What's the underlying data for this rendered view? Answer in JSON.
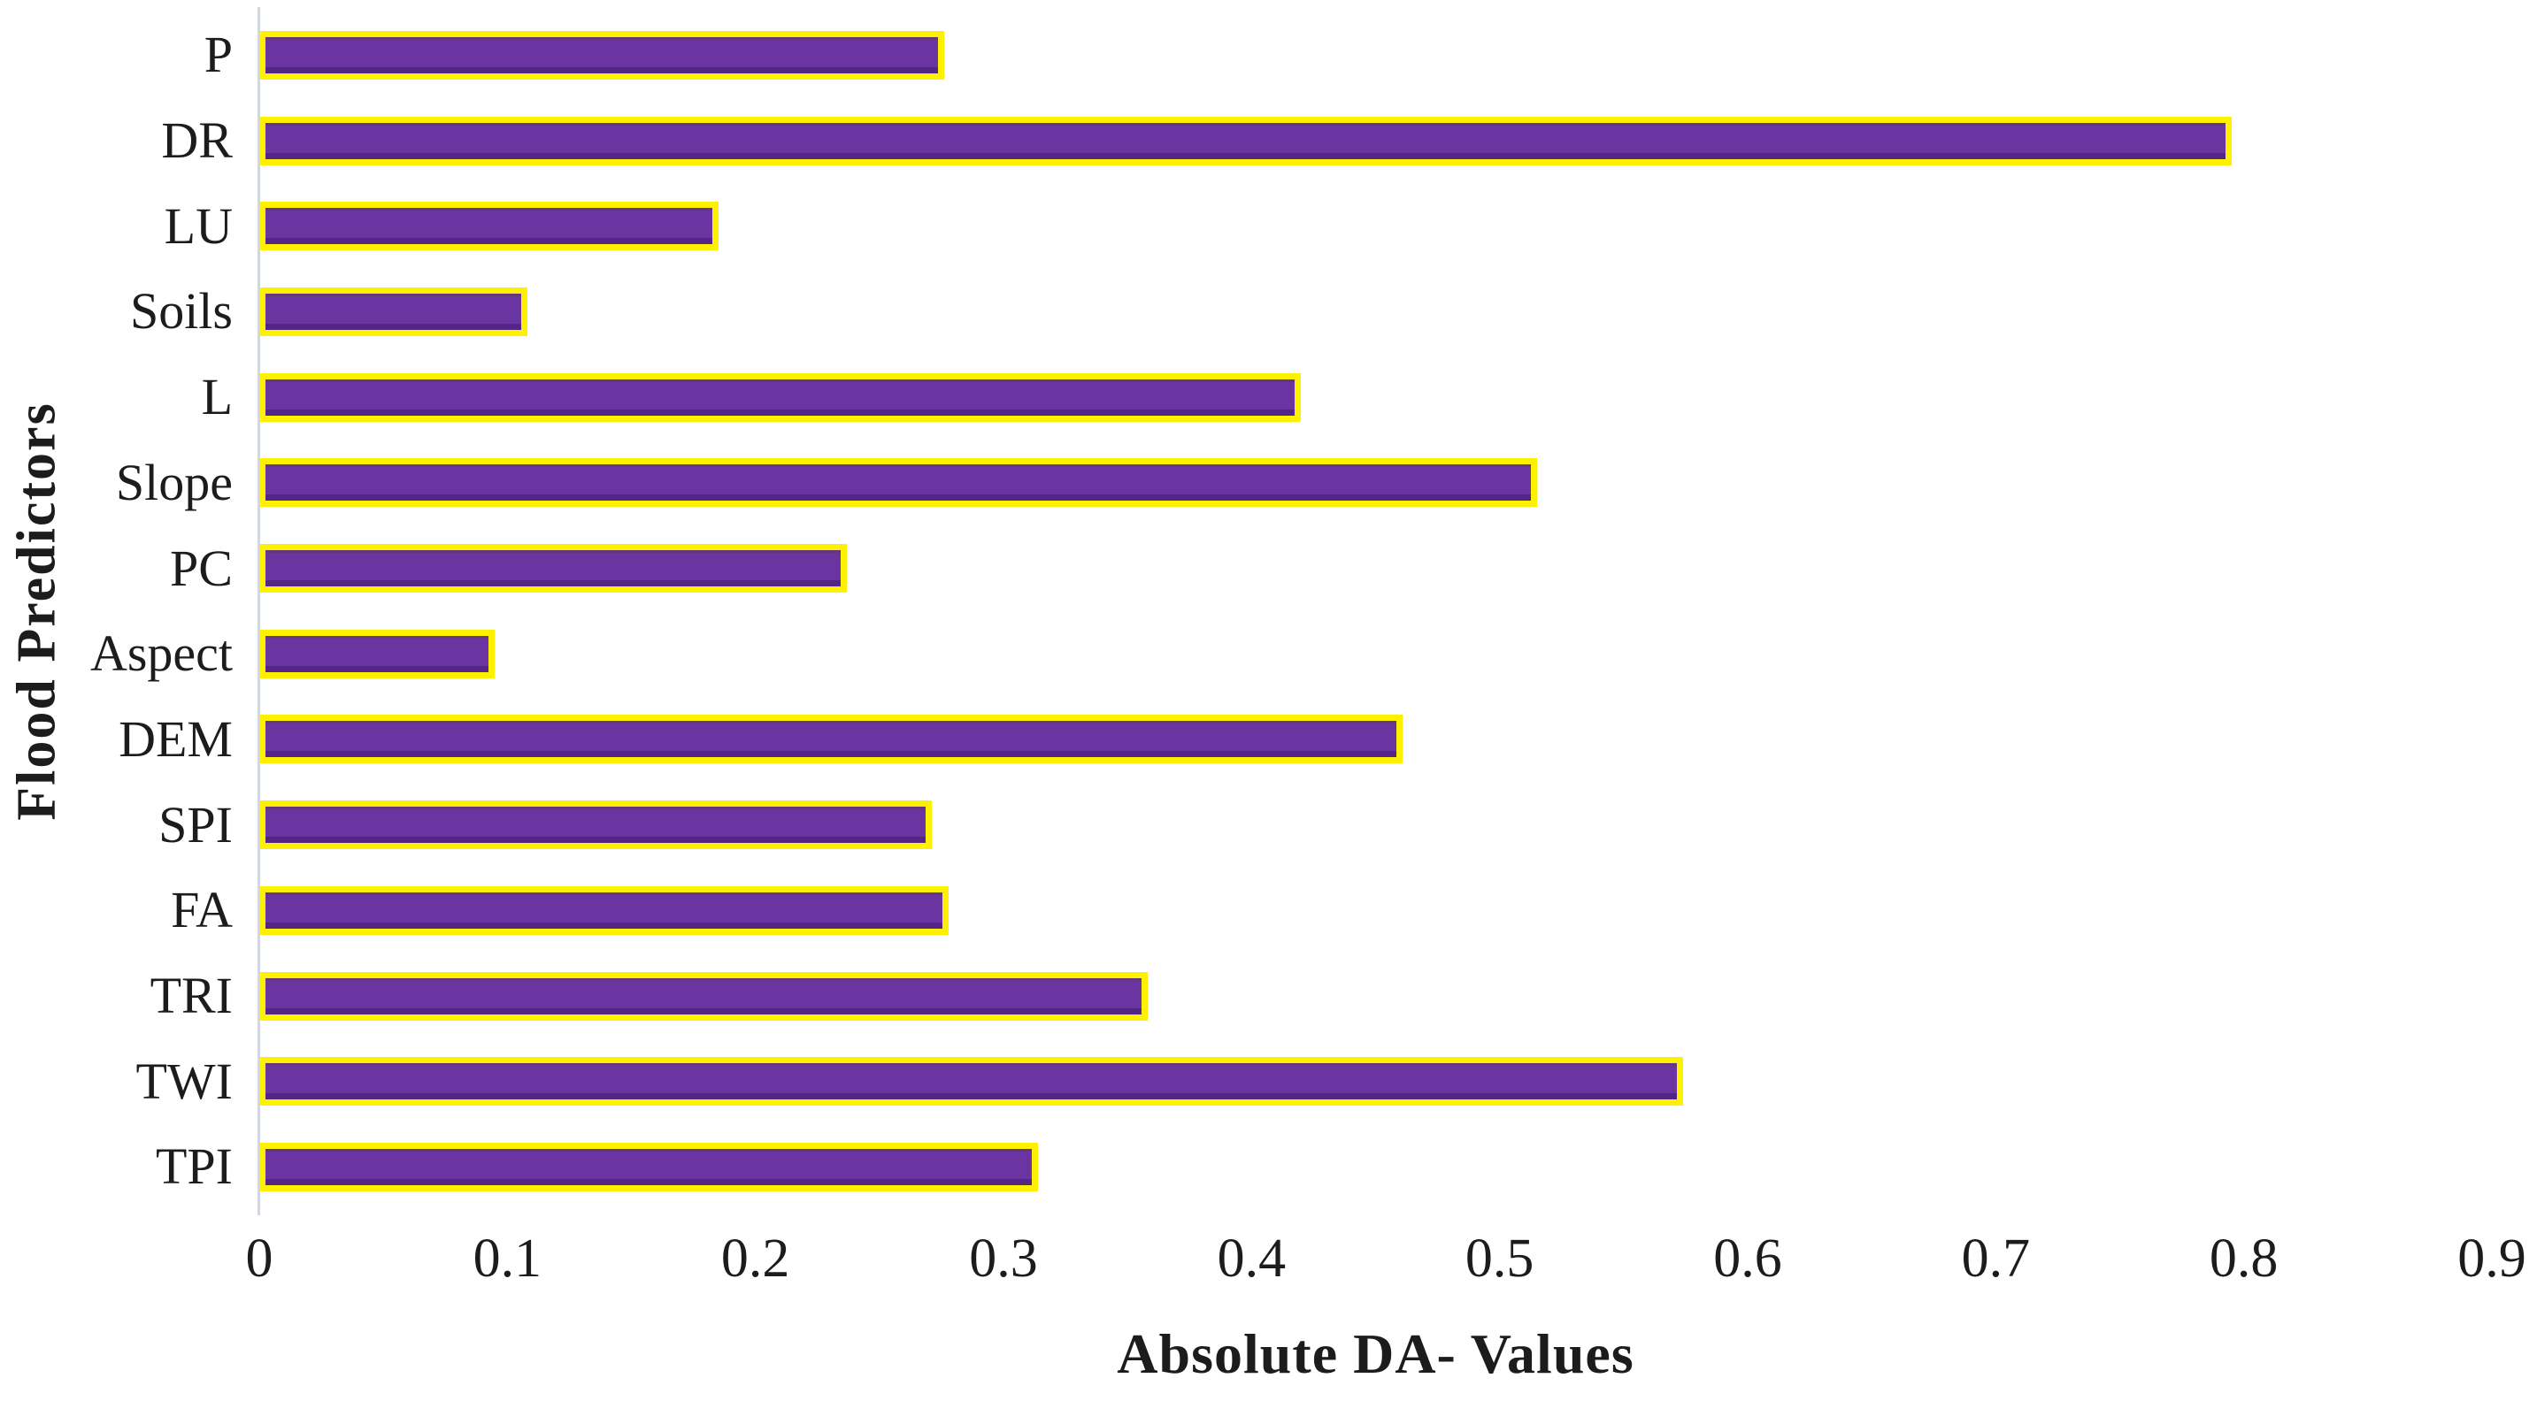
{
  "figure": {
    "background": "#ffffff",
    "text_color": "#1c1c1c"
  },
  "chart_data": {
    "type": "bar",
    "orientation": "horizontal",
    "title": "",
    "xlabel": "Absolute DA- Values",
    "ylabel": "Flood Predictors",
    "categories": [
      "P",
      "DR",
      "LU",
      "Soils",
      "L",
      "Slope",
      "PC",
      "Aspect",
      "DEM",
      "SPI",
      "FA",
      "TRI",
      "TWI",
      "TPI"
    ],
    "values": [
      0.271,
      0.79,
      0.18,
      0.103,
      0.415,
      0.51,
      0.232,
      0.09,
      0.456,
      0.266,
      0.273,
      0.353,
      0.569,
      0.309
    ],
    "xlim": [
      0,
      0.9
    ],
    "xticks": [
      0,
      0.1,
      0.2,
      0.3,
      0.4,
      0.5,
      0.6,
      0.7,
      0.8,
      0.9
    ],
    "xtick_labels": [
      "0",
      "0.1",
      "0.2",
      "0.3",
      "0.4",
      "0.5",
      "0.6",
      "0.7",
      "0.8",
      "0.9"
    ],
    "grid": false,
    "legend": false,
    "bar_fill_color": "#6a35a0",
    "bar_border_color": "#fdf000",
    "axis_line_color": "#ccd8e8"
  }
}
